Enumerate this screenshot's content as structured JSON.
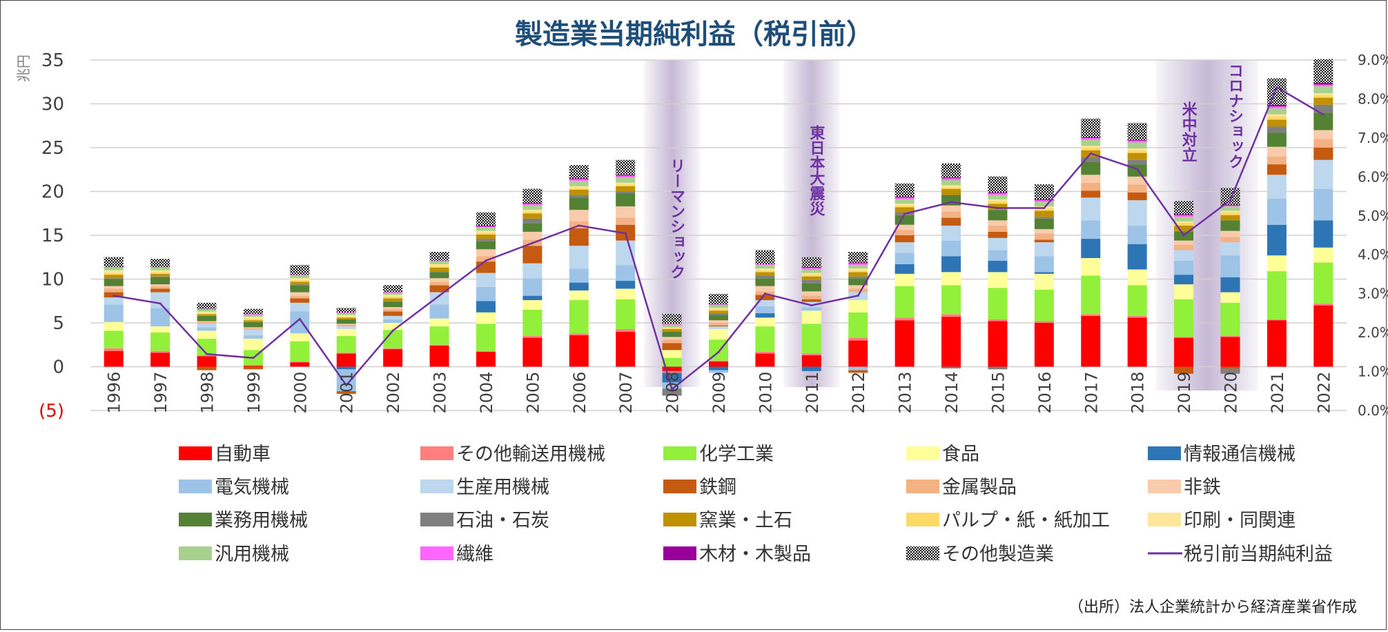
{
  "chart_data": {
    "type": "bar",
    "title": "製造業当期純利益（税引前）",
    "ylabel": "兆円",
    "ylim": [
      -5,
      35
    ],
    "y2lim": [
      0,
      9
    ],
    "yticks": [
      "(5)",
      "0",
      "5",
      "10",
      "15",
      "20",
      "25",
      "30",
      "35"
    ],
    "y2ticks": [
      "0.0%",
      "1.0%",
      "2.0%",
      "3.0%",
      "4.0%",
      "5.0%",
      "6.0%",
      "7.0%",
      "8.0%",
      "9.0%"
    ],
    "grid": true,
    "legend_position": "bottom",
    "categories": [
      "1996",
      "1997",
      "1998",
      "1999",
      "2000",
      "2001",
      "2002",
      "2003",
      "2004",
      "2005",
      "2006",
      "2007",
      "2008",
      "2009",
      "2010",
      "2011",
      "2012",
      "2013",
      "2014",
      "2015",
      "2016",
      "2017",
      "2018",
      "2019",
      "2020",
      "2021",
      "2022"
    ],
    "series": [
      {
        "name": "自動車",
        "color": "#ff0000",
        "values": [
          1.8,
          1.6,
          1.2,
          0.1,
          0.5,
          1.5,
          2.0,
          2.4,
          1.7,
          3.3,
          3.6,
          4.0,
          -0.5,
          0.6,
          1.5,
          1.3,
          3.0,
          5.3,
          5.7,
          5.2,
          5.0,
          5.8,
          5.6,
          3.3,
          3.4,
          5.3,
          7.0
        ]
      },
      {
        "name": "その他輸送用機械",
        "color": "#ff7f7f",
        "values": [
          0.3,
          0.2,
          0.1,
          0.1,
          0.1,
          0.1,
          0.1,
          0.1,
          0.1,
          0.2,
          0.2,
          0.3,
          -0.2,
          0.1,
          0.2,
          0.2,
          0.3,
          0.3,
          0.3,
          0.2,
          0.2,
          0.2,
          0.2,
          0.1,
          0.1,
          0.1,
          0.2
        ]
      },
      {
        "name": "化学工業",
        "color": "#92f03a",
        "values": [
          2.0,
          2.1,
          1.9,
          1.7,
          2.3,
          1.9,
          2.1,
          2.1,
          3.1,
          3.0,
          3.8,
          3.4,
          1.0,
          2.4,
          2.9,
          3.4,
          2.9,
          3.6,
          3.3,
          3.6,
          3.6,
          4.4,
          3.5,
          4.3,
          3.8,
          5.5,
          4.7
        ]
      },
      {
        "name": "食品",
        "color": "#ffff99",
        "values": [
          1.0,
          0.7,
          0.9,
          1.3,
          0.9,
          0.8,
          0.8,
          0.9,
          1.3,
          1.1,
          1.1,
          1.2,
          0.9,
          1.2,
          1.0,
          1.5,
          1.4,
          1.4,
          1.5,
          1.8,
          1.8,
          2.0,
          1.8,
          1.7,
          1.2,
          1.8,
          1.7
        ]
      },
      {
        "name": "情報通信機械",
        "color": "#2e75b6",
        "values": [
          0.0,
          0.0,
          0.0,
          0.0,
          0.0,
          -0.3,
          0.0,
          0.0,
          1.3,
          0.5,
          0.9,
          0.9,
          -1.1,
          -0.4,
          0.5,
          -0.5,
          0.0,
          1.1,
          1.8,
          1.3,
          0.2,
          2.2,
          2.9,
          1.1,
          1.7,
          3.5,
          3.1
        ]
      },
      {
        "name": "電気機械",
        "color": "#9dc3e6",
        "values": [
          2.0,
          2.1,
          0.4,
          0.4,
          2.5,
          -2.5,
          0.4,
          1.6,
          1.6,
          2.0,
          1.6,
          1.8,
          -0.7,
          -0.3,
          0.8,
          0.4,
          -0.4,
          1.3,
          1.8,
          1.2,
          1.8,
          2.1,
          2.1,
          1.6,
          2.5,
          3.0,
          3.6
        ]
      },
      {
        "name": "生産用機械",
        "color": "#bdd7ee",
        "values": [
          0.8,
          1.8,
          0.4,
          0.6,
          1.0,
          0.3,
          0.4,
          1.4,
          1.6,
          1.7,
          2.6,
          2.8,
          0.0,
          0.3,
          0.7,
          0.6,
          0.9,
          1.2,
          1.7,
          1.4,
          1.6,
          2.6,
          2.9,
          1.2,
          1.5,
          2.7,
          3.3
        ]
      },
      {
        "name": "鉄鋼",
        "color": "#c55a11",
        "values": [
          0.6,
          0.4,
          -0.4,
          -0.3,
          0.5,
          -0.3,
          0.5,
          0.8,
          1.3,
          2.0,
          2.0,
          1.8,
          0.8,
          0.1,
          0.6,
          0.3,
          -0.3,
          0.8,
          0.9,
          0.7,
          0.3,
          0.8,
          0.9,
          -0.8,
          -0.2,
          1.2,
          1.4
        ]
      },
      {
        "name": "金属製品",
        "color": "#f4b183",
        "values": [
          0.4,
          0.3,
          0.2,
          0.2,
          0.3,
          0.2,
          0.3,
          0.4,
          0.6,
          0.7,
          0.8,
          0.8,
          0.4,
          0.3,
          0.4,
          0.4,
          0.4,
          0.6,
          0.7,
          0.7,
          0.7,
          0.9,
          0.9,
          0.6,
          0.6,
          0.9,
          1.0
        ]
      },
      {
        "name": "非鉄",
        "color": "#f8cbad",
        "values": [
          0.3,
          0.2,
          0.1,
          0.1,
          0.4,
          0.1,
          0.2,
          0.4,
          0.8,
          0.9,
          1.3,
          1.3,
          0.3,
          0.3,
          0.6,
          0.5,
          0.4,
          0.6,
          0.7,
          0.6,
          0.5,
          0.9,
          0.9,
          0.5,
          0.7,
          1.1,
          1.0
        ]
      },
      {
        "name": "業務用機械",
        "color": "#548235",
        "values": [
          0.8,
          0.8,
          0.6,
          0.6,
          0.8,
          0.5,
          0.6,
          0.7,
          0.9,
          1.0,
          1.4,
          1.5,
          0.6,
          0.6,
          0.9,
          0.9,
          0.8,
          1.1,
          1.2,
          1.2,
          1.2,
          1.5,
          1.4,
          1.0,
          1.2,
          1.6,
          2.0
        ]
      },
      {
        "name": "石油・石炭",
        "color": "#7f7f7f",
        "values": [
          0.1,
          0.1,
          0.0,
          0.0,
          0.1,
          0.0,
          0.1,
          0.1,
          0.3,
          0.5,
          0.3,
          0.2,
          -0.8,
          0.2,
          0.3,
          0.4,
          0.2,
          0.3,
          -0.2,
          -0.3,
          0.2,
          0.5,
          0.5,
          0.1,
          -0.6,
          0.7,
          0.9
        ]
      },
      {
        "name": "窯業・土石",
        "color": "#bf9000",
        "values": [
          0.4,
          0.3,
          0.2,
          0.2,
          0.3,
          0.2,
          0.3,
          0.4,
          0.5,
          0.6,
          0.6,
          0.6,
          0.3,
          0.3,
          0.4,
          0.4,
          0.5,
          0.6,
          0.7,
          0.7,
          0.7,
          0.8,
          0.8,
          0.6,
          0.6,
          0.8,
          0.8
        ]
      },
      {
        "name": "パルプ・紙・紙加工",
        "color": "#ffd966",
        "values": [
          0.2,
          0.2,
          0.1,
          0.2,
          0.2,
          0.1,
          0.2,
          0.2,
          0.2,
          0.2,
          0.2,
          0.2,
          0.1,
          0.2,
          0.2,
          0.2,
          0.2,
          0.2,
          0.2,
          0.3,
          0.3,
          0.3,
          0.3,
          0.3,
          0.3,
          0.4,
          0.3
        ]
      },
      {
        "name": "印刷・同関連",
        "color": "#ffe699",
        "values": [
          0.3,
          0.2,
          0.2,
          0.2,
          0.2,
          0.2,
          0.2,
          0.2,
          0.2,
          0.2,
          0.2,
          0.2,
          0.1,
          0.1,
          0.2,
          0.2,
          0.2,
          0.2,
          0.2,
          0.2,
          0.2,
          0.2,
          0.2,
          0.2,
          0.2,
          0.2,
          0.2
        ]
      },
      {
        "name": "汎用機械",
        "color": "#a9d18e",
        "values": [
          0.3,
          0.3,
          0.2,
          0.2,
          0.3,
          0.2,
          0.2,
          0.3,
          0.4,
          0.5,
          0.6,
          0.6,
          0.3,
          0.3,
          0.4,
          0.4,
          0.4,
          0.5,
          0.6,
          0.5,
          0.5,
          0.7,
          0.7,
          0.5,
          0.5,
          0.7,
          0.8
        ]
      },
      {
        "name": "繊維",
        "color": "#ff66ff",
        "values": [
          0.1,
          0.1,
          0.1,
          0.1,
          0.1,
          0.1,
          0.1,
          0.1,
          0.1,
          0.2,
          0.2,
          0.2,
          0.1,
          0.1,
          0.1,
          0.2,
          0.2,
          0.2,
          0.2,
          0.2,
          0.2,
          0.2,
          0.2,
          0.2,
          0.1,
          0.2,
          0.2
        ]
      },
      {
        "name": "木材・木製品",
        "color": "#990099",
        "values": [
          0.0,
          0.0,
          0.0,
          0.0,
          0.0,
          0.0,
          0.0,
          0.0,
          0.1,
          0.1,
          0.1,
          0.1,
          0.0,
          0.0,
          0.0,
          0.1,
          0.1,
          0.1,
          0.1,
          0.1,
          0.1,
          0.1,
          0.1,
          0.1,
          0.1,
          0.2,
          0.2
        ]
      },
      {
        "name": "その他製造業",
        "color": "pattern",
        "values": [
          1.1,
          0.9,
          0.7,
          0.6,
          1.1,
          0.5,
          0.8,
          1.0,
          1.5,
          1.6,
          1.5,
          1.7,
          1.1,
          1.2,
          1.6,
          1.1,
          1.2,
          1.5,
          1.6,
          1.8,
          1.7,
          2.1,
          1.9,
          1.5,
          1.9,
          3.0,
          2.7
        ]
      }
    ],
    "line": {
      "name": "税引前当期純利益",
      "color": "#7030a0",
      "axis": "right",
      "values": [
        2.95,
        2.75,
        1.45,
        1.35,
        2.35,
        0.65,
        2.05,
        2.95,
        3.85,
        4.3,
        4.75,
        4.55,
        0.55,
        1.5,
        3.0,
        2.7,
        2.95,
        5.05,
        5.35,
        5.2,
        5.2,
        6.6,
        6.2,
        4.5,
        5.4,
        8.3,
        7.6
      ]
    },
    "events": [
      {
        "label": "リーマンショック",
        "from": "2008",
        "to": "2008"
      },
      {
        "label": "東日本大震災",
        "from": "2011",
        "to": "2011"
      },
      {
        "label": "米中対立",
        "from": "2019",
        "to": "2019"
      },
      {
        "label": "コロナショック",
        "from": "2020",
        "to": "2020"
      }
    ]
  },
  "source_note": "（出所）法人企業統計から経済産業省作成"
}
